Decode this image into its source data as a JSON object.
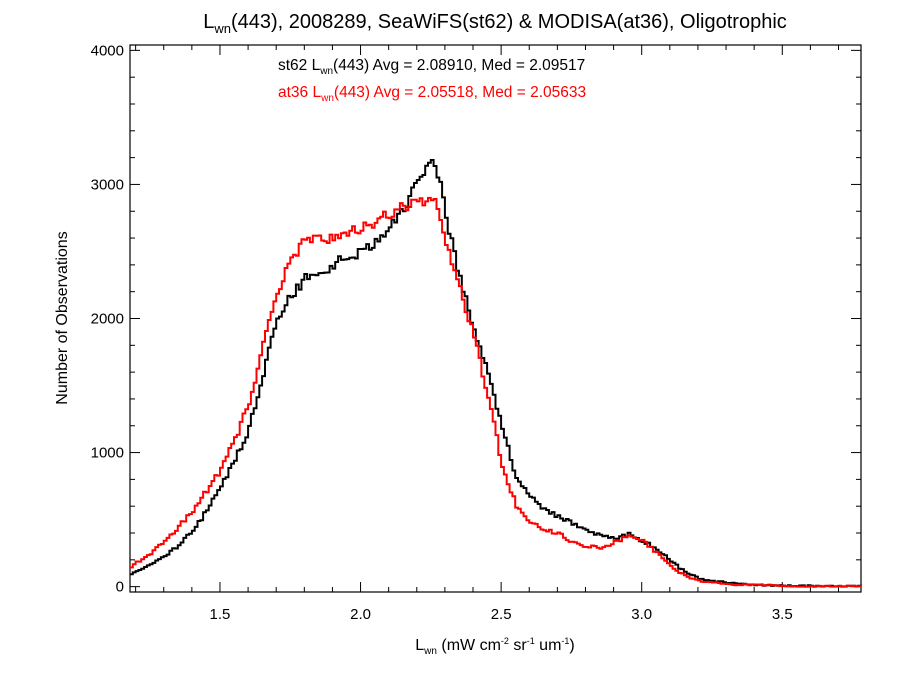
{
  "chart_data": {
    "type": "line",
    "style": "step-histogram",
    "title": {
      "main": "L",
      "sub": "wn",
      "rest": "(443), 2008289, SeaWiFS(st62) & MODISA(at36), Oligotrophic"
    },
    "xlabel": {
      "main": "L",
      "sub": "wn",
      "p1": " (mW cm",
      "s1": "-2",
      "p2": " sr",
      "s2": "-1",
      "p3": " um",
      "s3": "-1",
      "p4": ")"
    },
    "ylabel": "Number of Observations",
    "xlim": [
      1.18,
      3.78
    ],
    "ylim": [
      -40,
      4040
    ],
    "xticks": [
      {
        "value": 1.5,
        "label": "1.5"
      },
      {
        "value": 2.0,
        "label": "2.0"
      },
      {
        "value": 2.5,
        "label": "2.5"
      },
      {
        "value": 3.0,
        "label": "3.0"
      },
      {
        "value": 3.5,
        "label": "3.5"
      }
    ],
    "yticks": [
      {
        "value": 0,
        "label": "0"
      },
      {
        "value": 1000,
        "label": "1000"
      },
      {
        "value": 2000,
        "label": "2000"
      },
      {
        "value": 3000,
        "label": "3000"
      },
      {
        "value": 4000,
        "label": "4000"
      }
    ],
    "grid": false,
    "annotations": [
      {
        "series": "st62",
        "prefix": "st62 L",
        "sub": "wn",
        "rest": "(443) Avg = 2.08910, Med = 2.09517",
        "color": "#000000"
      },
      {
        "series": "at36",
        "prefix": "at36 L",
        "sub": "wn",
        "rest": "(443) Avg = 2.05518, Med = 2.05633",
        "color": "#ff0000"
      }
    ],
    "series": [
      {
        "name": "st62",
        "color": "#000000",
        "x": [
          1.18,
          1.25,
          1.3,
          1.35,
          1.4,
          1.45,
          1.5,
          1.55,
          1.6,
          1.65,
          1.7,
          1.75,
          1.8,
          1.85,
          1.9,
          1.95,
          2.0,
          2.05,
          2.1,
          2.15,
          2.2,
          2.225,
          2.25,
          2.275,
          2.3,
          2.35,
          2.4,
          2.45,
          2.5,
          2.55,
          2.6,
          2.65,
          2.7,
          2.75,
          2.8,
          2.85,
          2.9,
          2.95,
          3.0,
          3.05,
          3.1,
          3.15,
          3.2,
          3.3,
          3.4,
          3.5,
          3.6,
          3.7,
          3.78
        ],
        "y": [
          100,
          170,
          230,
          310,
          420,
          570,
          750,
          960,
          1180,
          1600,
          1980,
          2170,
          2300,
          2360,
          2400,
          2450,
          2490,
          2560,
          2680,
          2820,
          3050,
          3130,
          3180,
          3060,
          2750,
          2280,
          1920,
          1620,
          1180,
          800,
          670,
          580,
          520,
          470,
          420,
          380,
          360,
          390,
          340,
          280,
          190,
          110,
          60,
          30,
          15,
          8,
          4,
          2,
          1
        ]
      },
      {
        "name": "at36",
        "color": "#ff0000",
        "x": [
          1.18,
          1.25,
          1.3,
          1.35,
          1.4,
          1.45,
          1.5,
          1.55,
          1.6,
          1.65,
          1.7,
          1.75,
          1.8,
          1.85,
          1.9,
          1.95,
          2.0,
          2.05,
          2.1,
          2.15,
          2.2,
          2.225,
          2.25,
          2.275,
          2.3,
          2.35,
          2.4,
          2.45,
          2.5,
          2.55,
          2.6,
          2.65,
          2.7,
          2.75,
          2.8,
          2.85,
          2.9,
          2.95,
          3.0,
          3.05,
          3.1,
          3.15,
          3.2,
          3.3,
          3.4,
          3.5,
          3.6,
          3.7,
          3.78
        ],
        "y": [
          150,
          250,
          340,
          450,
          570,
          720,
          880,
          1100,
          1380,
          1800,
          2200,
          2450,
          2600,
          2620,
          2600,
          2620,
          2680,
          2720,
          2780,
          2830,
          2880,
          2860,
          2900,
          2820,
          2580,
          2200,
          1850,
          1420,
          900,
          600,
          480,
          420,
          400,
          330,
          300,
          290,
          330,
          380,
          340,
          250,
          150,
          80,
          40,
          20,
          10,
          5,
          3,
          2,
          1
        ]
      }
    ]
  }
}
